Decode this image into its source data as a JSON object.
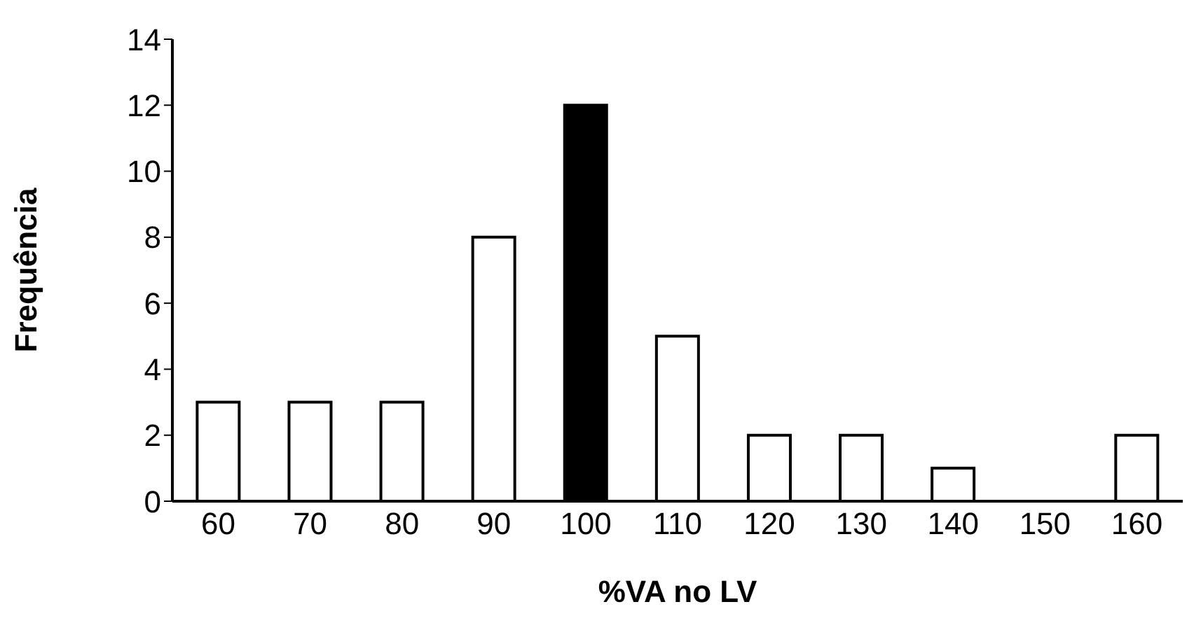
{
  "chart_data": {
    "type": "bar",
    "xlabel": "%VA no LV",
    "ylabel": "Frequência",
    "categories": [
      "60",
      "70",
      "80",
      "90",
      "100",
      "110",
      "120",
      "130",
      "140",
      "150",
      "160"
    ],
    "values": [
      3,
      3,
      3,
      8,
      12,
      5,
      2,
      2,
      1,
      0,
      2
    ],
    "colors": [
      "#ffffff",
      "#ffffff",
      "#ffffff",
      "#ffffff",
      "#000000",
      "#ffffff",
      "#ffffff",
      "#ffffff",
      "#ffffff",
      "#ffffff",
      "#ffffff"
    ],
    "ylim": [
      0,
      14
    ],
    "yticks": [
      0,
      2,
      4,
      6,
      8,
      10,
      12,
      14
    ]
  }
}
